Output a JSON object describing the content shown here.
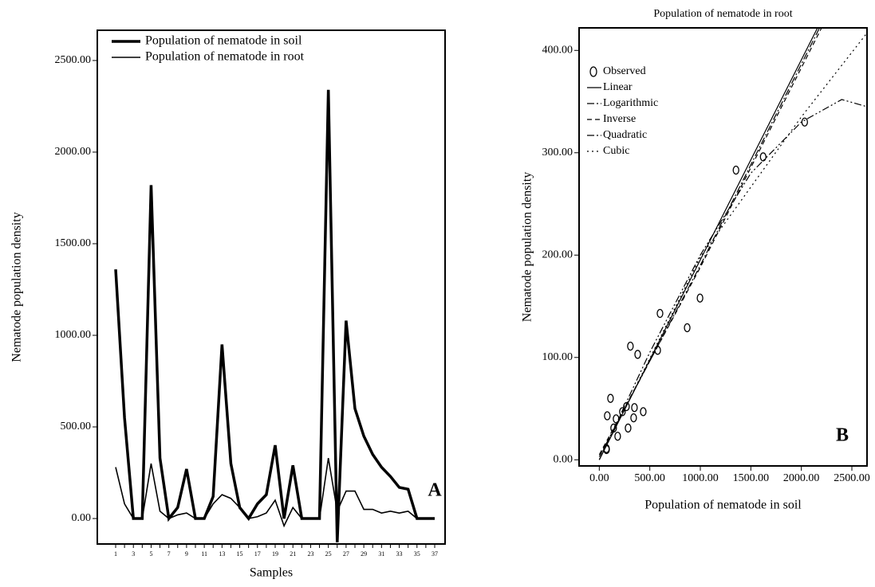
{
  "chart_data": [
    {
      "type": "line",
      "x_label": "Samples",
      "y_label": "Nematode population density",
      "annotation": "A",
      "legend": "upper left",
      "categories": [
        "1",
        null,
        "3",
        null,
        "5",
        null,
        "7",
        null,
        "9",
        null,
        "11",
        null,
        "13",
        null,
        "15",
        null,
        "17",
        null,
        "19",
        null,
        "21",
        null,
        "23",
        null,
        "25",
        null,
        "27",
        null,
        "29",
        null,
        "31",
        null,
        "33",
        null,
        "35",
        null,
        "37"
      ],
      "series": [
        {
          "name": "Population of nematode in soil",
          "color": "#000000",
          "width": 3.5,
          "values": [
            1360,
            550,
            0,
            0,
            1820,
            330,
            0,
            60,
            270,
            0,
            0,
            120,
            950,
            300,
            60,
            0,
            80,
            130,
            400,
            0,
            290,
            0,
            0,
            0,
            2340,
            -130,
            1080,
            600,
            450,
            350,
            280,
            230,
            170,
            160,
            0,
            0,
            0
          ]
        },
        {
          "name": "Population of nematode in root",
          "color": "#000000",
          "width": 1.6,
          "values": [
            280,
            80,
            0,
            0,
            300,
            40,
            0,
            20,
            30,
            0,
            0,
            80,
            130,
            110,
            60,
            0,
            10,
            30,
            100,
            -40,
            60,
            0,
            0,
            0,
            330,
            40,
            150,
            150,
            50,
            50,
            30,
            40,
            30,
            40,
            0,
            0,
            0
          ]
        }
      ],
      "ylim": [
        -139,
        2665
      ],
      "yticks": [
        {
          "value": 0,
          "label": "0.00"
        },
        {
          "value": 500,
          "label": "500.00"
        },
        {
          "value": 1000,
          "label": "1000.00"
        },
        {
          "value": 1500,
          "label": "1500.00"
        },
        {
          "value": 2000,
          "label": "2000.00"
        },
        {
          "value": 2500,
          "label": "2500.00"
        }
      ]
    },
    {
      "type": "scatter",
      "title": "Population of nematode in root",
      "x_label": "Population of nematode in soil",
      "y_label": "Nematode population density",
      "annotation": "B",
      "legend": "upper left",
      "series": [
        {
          "name": "Observed",
          "mode": "markers",
          "color": "#000000",
          "x": [
            71,
            72,
            79,
            111,
            142,
            166,
            182,
            229,
            269,
            285,
            308,
            340,
            348,
            380,
            435,
            578,
            601,
            870,
            997,
            1353,
            1622,
            2033
          ],
          "values": [
            11,
            10,
            43,
            60,
            31,
            40,
            23,
            47,
            52,
            31,
            111,
            41,
            51,
            103,
            47,
            107,
            143,
            129,
            158,
            283,
            296,
            330
          ]
        },
        {
          "name": "Linear",
          "mode": "line",
          "style": "solid",
          "color": "#000000",
          "x": [
            0,
            2160
          ],
          "values": [
            0,
            422
          ]
        },
        {
          "name": "Logarithmic",
          "mode": "line",
          "style": "dashdot",
          "color": "#000000",
          "x": [
            0,
            1000,
            2180
          ],
          "values": [
            3,
            190,
            422
          ]
        },
        {
          "name": "Inverse",
          "mode": "line",
          "style": "dash",
          "color": "#000000",
          "x": [
            0,
            1000,
            2200
          ],
          "values": [
            5,
            188,
            422
          ]
        },
        {
          "name": "Quadratic",
          "mode": "line",
          "style": "dashdotdot",
          "color": "#000000",
          "x": [
            0,
            500,
            1000,
            1500,
            2000,
            2400,
            2650
          ],
          "values": [
            0,
            105,
            200,
            280,
            330,
            352,
            345
          ]
        },
        {
          "name": "Cubic",
          "mode": "line",
          "style": "dot",
          "color": "#000000",
          "x": [
            0,
            1000,
            2000,
            2650
          ],
          "values": [
            0,
            198,
            335,
            417
          ]
        }
      ],
      "xlim": [
        -200,
        2650
      ],
      "ylim": [
        -6,
        422
      ],
      "xticks": [
        {
          "value": 0,
          "label": "0.00"
        },
        {
          "value": 500,
          "label": "500.00"
        },
        {
          "value": 1000,
          "label": "1000.00"
        },
        {
          "value": 1500,
          "label": "1500.00"
        },
        {
          "value": 2000,
          "label": "2000.00"
        },
        {
          "value": 2500,
          "label": "2500.00"
        }
      ],
      "yticks": [
        {
          "value": 0,
          "label": "0.00"
        },
        {
          "value": 100,
          "label": "100.00"
        },
        {
          "value": 200,
          "label": "200.00"
        },
        {
          "value": 300,
          "label": "300.00"
        },
        {
          "value": 400,
          "label": "400.00"
        }
      ]
    }
  ]
}
